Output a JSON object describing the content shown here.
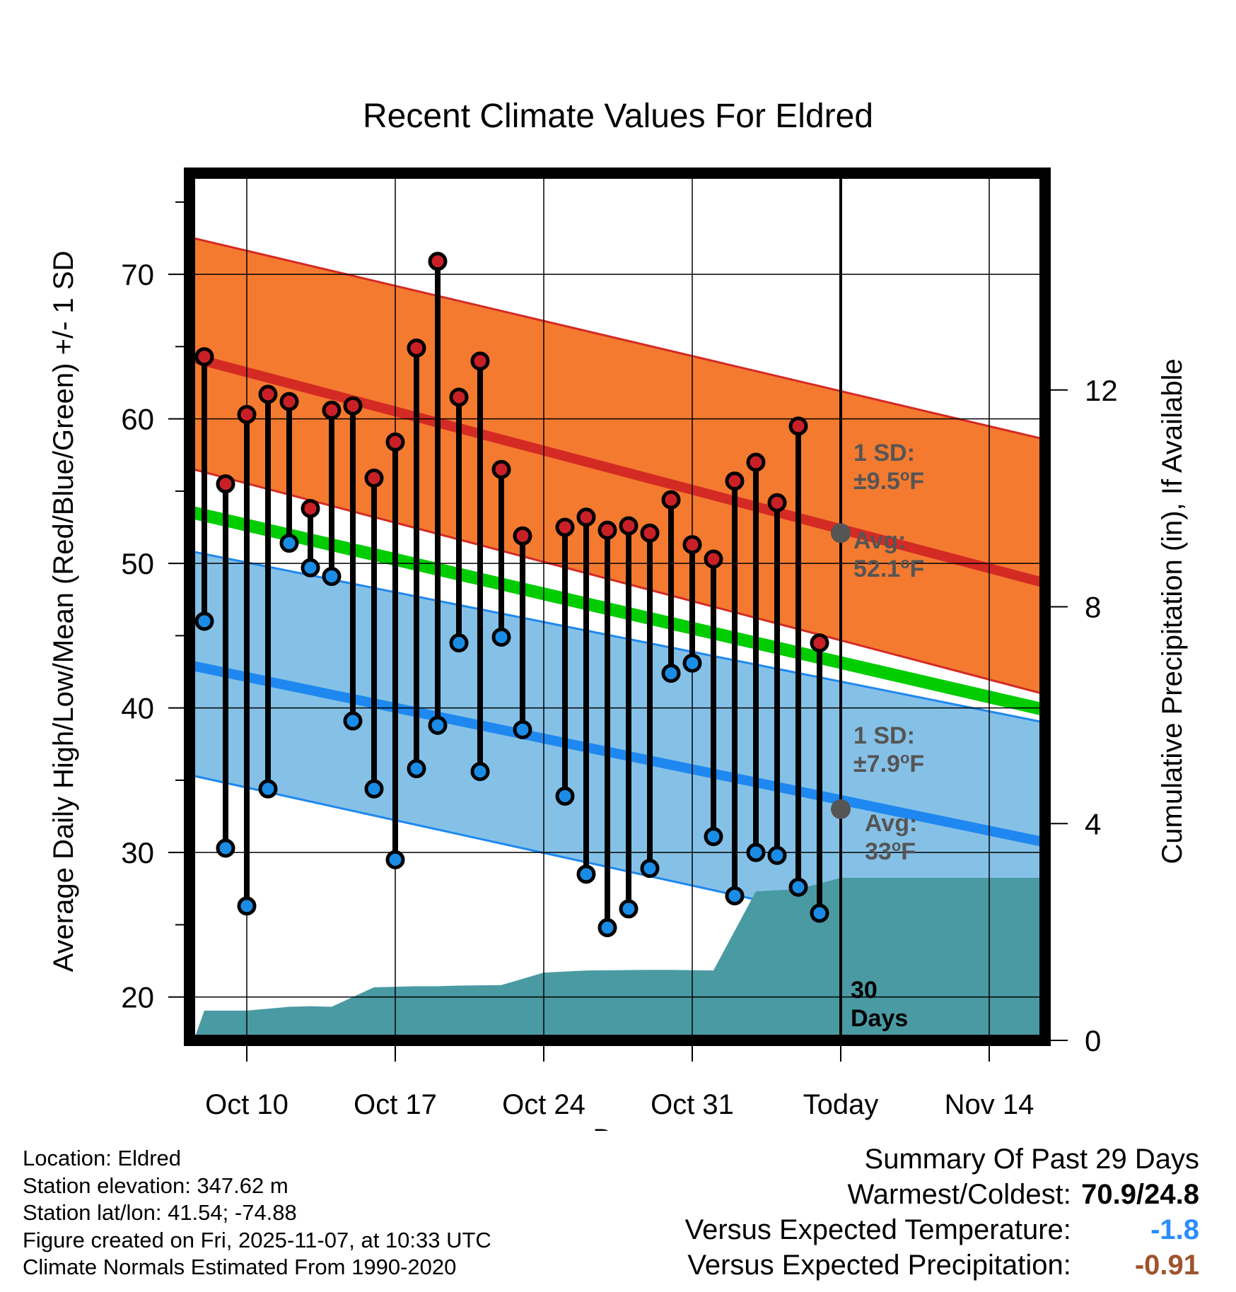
{
  "chart_data": {
    "type": "line",
    "title": "Recent Climate Values For Eldred",
    "xlabel": "Day",
    "ylabel": "Average Daily High/Low/Mean (Red/Blue/Green) +/- 1 SD",
    "y2label": "Cumulative Precipitation (in), If Available",
    "ylim": [
      17,
      77
    ],
    "y2lim": [
      0,
      16
    ],
    "xlim": [
      -2.5,
      39.3
    ],
    "y_ticks": [
      "20",
      "30",
      "40",
      "50",
      "60",
      "70"
    ],
    "y2_ticks": [
      "0",
      "4",
      "8",
      "12"
    ],
    "x_ticks": [
      {
        "day": 0,
        "label": "Oct 10"
      },
      {
        "day": 7,
        "label": "Oct 17"
      },
      {
        "day": 14,
        "label": "Oct 24"
      },
      {
        "day": 21,
        "label": "Oct 31"
      },
      {
        "day": 28,
        "label": "Today"
      },
      {
        "day": 35,
        "label": "Nov 14"
      }
    ],
    "today_day": 28,
    "today_annotation": "30\nDays",
    "normals": {
      "high_avg": {
        "start": 64.2,
        "end": 48.0,
        "color": "#d42a24"
      },
      "high_band": {
        "upper_start": 72.5,
        "upper_end": 58.0,
        "lower_start": 56.5,
        "lower_end": 40.3,
        "color": "#f47a30"
      },
      "mean_avg": {
        "start": 53.5,
        "end": 39.3,
        "color": "#00cc00"
      },
      "low_avg": {
        "start": 42.9,
        "end": 30.2,
        "color": "#1e88f0"
      },
      "low_band": {
        "upper_start": 50.8,
        "upper_end": 38.5,
        "lower_start": 35.3,
        "lower_end": 21.8,
        "color": "#85c1e7"
      }
    },
    "series": [
      {
        "name": "High",
        "color": "#c92028",
        "values": [
          64.3,
          55.5,
          60.3,
          61.7,
          61.2,
          53.8,
          60.6,
          60.9,
          55.9,
          58.4,
          64.9,
          70.9,
          61.5,
          64.0,
          56.5,
          51.9,
          null,
          52.5,
          53.2,
          52.3,
          52.6,
          52.1,
          54.4,
          51.3,
          50.3,
          55.7,
          57.0,
          54.2,
          59.5,
          44.5
        ]
      },
      {
        "name": "Low",
        "color": "#1a8ce6",
        "values": [
          46.0,
          30.3,
          26.3,
          34.4,
          51.4,
          49.7,
          49.1,
          39.1,
          34.4,
          29.5,
          35.8,
          38.8,
          44.5,
          35.6,
          44.9,
          38.5,
          null,
          33.9,
          28.5,
          24.8,
          26.1,
          28.9,
          42.4,
          43.1,
          31.1,
          27.0,
          30.0,
          29.8,
          27.6,
          25.8
        ]
      }
    ],
    "day_offsets": [
      -2,
      -1,
      0,
      1,
      2,
      3,
      4,
      5,
      6,
      7,
      8,
      9,
      10,
      11,
      12,
      13,
      14,
      15,
      16,
      17,
      18,
      19,
      20,
      21,
      22,
      23,
      24,
      25,
      26,
      27
    ],
    "precipitation": {
      "name": "Cumulative Precipitation",
      "color": "#4a9aa3",
      "x": [
        -2.5,
        -2.0,
        0,
        2,
        3,
        4,
        6,
        8,
        9,
        10,
        12,
        14,
        16,
        19,
        20,
        22,
        24,
        25,
        26,
        28,
        39.3
      ],
      "values": [
        0,
        0.55,
        0.55,
        0.62,
        0.63,
        0.62,
        0.98,
        1.0,
        1.0,
        1.01,
        1.02,
        1.25,
        1.29,
        1.3,
        1.3,
        1.29,
        2.75,
        2.77,
        2.79,
        3.0,
        3.0
      ]
    },
    "annotations": {
      "high_sd": "1 SD:",
      "high_sd_value": "±9.5",
      "high_avg_label": "Avg:",
      "high_avg_value": "52.1",
      "low_sd": "1 SD:",
      "low_sd_value": "±7.9",
      "low_avg_label": "Avg:",
      "low_avg_value": "33",
      "unit": "oF",
      "annotation_color": "#555555",
      "marker_high_today": 52.1,
      "marker_low_today": 33.0
    }
  },
  "info": {
    "location": "Location: Eldred",
    "elevation": "Station elevation: 347.62 m",
    "latlon": "Station lat/lon: 41.54; -74.88",
    "created": "Figure created on Fri, 2025-11-07, at 10:33 UTC",
    "normals": "Climate Normals Estimated From 1990-2020"
  },
  "summary": {
    "title": "Summary Of Past 29 Days",
    "warmest_label": "Warmest/Coldest:",
    "warmest_value": "70.9/24.8",
    "temp_label": "Versus Expected Temperature:",
    "temp_value": "-1.8",
    "precip_label": "Versus Expected Precipitation:",
    "precip_value": "-0.91"
  }
}
